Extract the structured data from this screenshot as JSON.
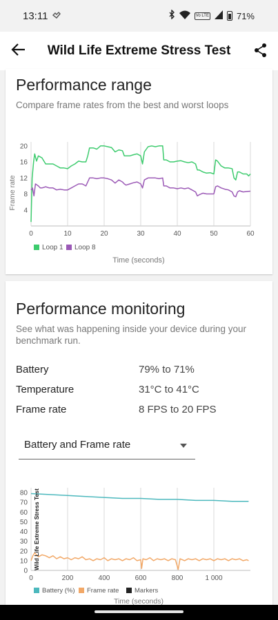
{
  "status": {
    "time": "13:11",
    "battery_pct": "71%",
    "volte_label": "Vo LTE",
    "icons": [
      "notification-icon",
      "bluetooth-icon",
      "wifi-icon",
      "volte-icon",
      "signal-icon",
      "battery-icon"
    ]
  },
  "app_bar": {
    "title": "Wild Life Extreme Stress Test",
    "back_icon": "arrow-left-icon",
    "share_icon": "share-icon"
  },
  "performance_range": {
    "heading": "Performance range",
    "description": "Compare frame rates from the best and worst loops",
    "chart_data": {
      "type": "line",
      "ylabel": "Frame rate",
      "xlabel": "Time (seconds)",
      "xlim": [
        0,
        60
      ],
      "ylim": [
        0,
        21
      ],
      "x_ticks": [
        "0",
        "10",
        "20",
        "30",
        "40",
        "50",
        "60"
      ],
      "y_ticks": [
        "4",
        "8",
        "12",
        "16",
        "20"
      ],
      "grid": "vertical",
      "legend_position": "bottom-left",
      "series": [
        {
          "name": "Loop 1",
          "color": "#3ccb6d",
          "points": [
            [
              0,
              1
            ],
            [
              0.3,
              12
            ],
            [
              0.7,
              16
            ],
            [
              1,
              18
            ],
            [
              1.5,
              16.2
            ],
            [
              2,
              17.5
            ],
            [
              3,
              17
            ],
            [
              4,
              15.5
            ],
            [
              5,
              15.5
            ],
            [
              6,
              15.5
            ],
            [
              7,
              15
            ],
            [
              8,
              14.5
            ],
            [
              9,
              14.5
            ],
            [
              10,
              14.3
            ],
            [
              11,
              15
            ],
            [
              12,
              15.5
            ],
            [
              13,
              16.2
            ],
            [
              14,
              16
            ],
            [
              15,
              16
            ],
            [
              15.5,
              17.5
            ],
            [
              16,
              19.5
            ],
            [
              17,
              19.5
            ],
            [
              18,
              19.2
            ],
            [
              19,
              20
            ],
            [
              20,
              20
            ],
            [
              21,
              19.8
            ],
            [
              22,
              19.6
            ],
            [
              23,
              18.5
            ],
            [
              24,
              19
            ],
            [
              25,
              18.8
            ],
            [
              25.5,
              17.5
            ],
            [
              26,
              17.5
            ],
            [
              27,
              17.5
            ],
            [
              28,
              17.8
            ],
            [
              29,
              18
            ],
            [
              30,
              17.5
            ],
            [
              30.5,
              15.5
            ],
            [
              31,
              18.5
            ],
            [
              32,
              19.8
            ],
            [
              33,
              20
            ],
            [
              34,
              19.8
            ],
            [
              35,
              20
            ],
            [
              36,
              20
            ],
            [
              36.3,
              16.5
            ],
            [
              37,
              16.5
            ],
            [
              38,
              16
            ],
            [
              39,
              16
            ],
            [
              40,
              16.2
            ],
            [
              41,
              16.3
            ],
            [
              42,
              16
            ],
            [
              43,
              15.8
            ],
            [
              44,
              16
            ],
            [
              45,
              15.5
            ],
            [
              45.5,
              14
            ],
            [
              46,
              14
            ],
            [
              47,
              13.5
            ],
            [
              48,
              13.2
            ],
            [
              49,
              13.3
            ],
            [
              50,
              13
            ],
            [
              50.5,
              16.5
            ],
            [
              51,
              16.2
            ],
            [
              52,
              15
            ],
            [
              53,
              14.5
            ],
            [
              54,
              14.5
            ],
            [
              55,
              14.3
            ],
            [
              55.5,
              12
            ],
            [
              56,
              11.5
            ],
            [
              56.5,
              13.5
            ],
            [
              57,
              13.5
            ],
            [
              58,
              13
            ],
            [
              59,
              13
            ],
            [
              59.5,
              12.5
            ],
            [
              60,
              13
            ]
          ]
        },
        {
          "name": "Loop 8",
          "color": "#9b59b6",
          "points": [
            [
              0,
              9
            ],
            [
              0.4,
              9.5
            ],
            [
              0.8,
              7.5
            ],
            [
              1.2,
              10.5
            ],
            [
              2,
              10
            ],
            [
              2.5,
              9.5
            ],
            [
              3,
              9.5
            ],
            [
              4,
              9.8
            ],
            [
              5,
              9.5
            ],
            [
              6,
              9.5
            ],
            [
              7,
              9
            ],
            [
              8,
              9.2
            ],
            [
              9,
              9
            ],
            [
              10,
              9
            ],
            [
              11,
              9.5
            ],
            [
              12,
              10
            ],
            [
              13,
              10.5
            ],
            [
              14,
              10.5
            ],
            [
              15,
              10
            ],
            [
              15.5,
              11
            ],
            [
              16,
              12
            ],
            [
              17,
              12
            ],
            [
              18,
              11.8
            ],
            [
              19,
              12
            ],
            [
              20,
              12
            ],
            [
              21,
              11.8
            ],
            [
              22,
              11.5
            ],
            [
              23,
              10.7
            ],
            [
              24,
              11.5
            ],
            [
              25,
              11
            ],
            [
              25.5,
              10.5
            ],
            [
              26,
              10.2
            ],
            [
              27,
              10.5
            ],
            [
              28,
              10.8
            ],
            [
              29,
              11
            ],
            [
              30,
              10.5
            ],
            [
              30.5,
              9.5
            ],
            [
              31,
              11.5
            ],
            [
              32,
              12
            ],
            [
              33,
              12
            ],
            [
              34,
              12
            ],
            [
              35,
              11.8
            ],
            [
              36,
              12
            ],
            [
              36.3,
              10
            ],
            [
              37,
              10
            ],
            [
              38,
              9.5
            ],
            [
              39,
              9.5
            ],
            [
              40,
              9.3
            ],
            [
              41,
              9.5
            ],
            [
              42,
              9.3
            ],
            [
              43,
              9.5
            ],
            [
              44,
              9
            ],
            [
              45,
              8.5
            ],
            [
              45.5,
              7.5
            ],
            [
              46,
              7.8
            ],
            [
              47,
              8.2
            ],
            [
              48,
              8
            ],
            [
              49,
              8
            ],
            [
              50,
              8
            ],
            [
              50.5,
              9.8
            ],
            [
              51,
              10
            ],
            [
              52,
              9.5
            ],
            [
              53,
              9.2
            ],
            [
              54,
              9
            ],
            [
              55,
              8.5
            ],
            [
              55.5,
              7.5
            ],
            [
              56,
              7.3
            ],
            [
              56.5,
              8.5
            ],
            [
              57,
              8.8
            ],
            [
              58,
              8.5
            ],
            [
              59,
              8.6
            ],
            [
              60,
              8.7
            ]
          ]
        }
      ]
    }
  },
  "performance_monitoring": {
    "heading": "Performance monitoring",
    "description": "See what was happening inside your device during your benchmark run.",
    "rows": [
      {
        "label": "Battery",
        "value": "79% to 71%"
      },
      {
        "label": "Temperature",
        "value": "31°C to 41°C"
      },
      {
        "label": "Frame rate",
        "value": "8 FPS to 20 FPS"
      }
    ],
    "selector": {
      "selected": "Battery and Frame rate"
    },
    "chart_data": {
      "type": "line",
      "marker_label": "Wild Life Extreme Stress Test",
      "xlabel": "Time (seconds)",
      "xlim": [
        0,
        1200
      ],
      "ylim": [
        0,
        85
      ],
      "x_ticks": [
        "0",
        "200",
        "400",
        "600",
        "800",
        "1 000"
      ],
      "y_ticks": [
        "0",
        "10",
        "20",
        "30",
        "40",
        "50",
        "60",
        "70",
        "80"
      ],
      "grid": "vertical",
      "legend_position": "bottom-left",
      "series": [
        {
          "name": "Battery (%)",
          "color": "#4bb8bd",
          "points": [
            [
              0,
              79
            ],
            [
              100,
              78
            ],
            [
              200,
              77
            ],
            [
              300,
              76
            ],
            [
              400,
              75
            ],
            [
              500,
              74
            ],
            [
              600,
              74
            ],
            [
              700,
              73
            ],
            [
              800,
              73
            ],
            [
              900,
              72
            ],
            [
              1000,
              72
            ],
            [
              1100,
              71
            ],
            [
              1190,
              71
            ]
          ]
        },
        {
          "name": "Frame rate",
          "color": "#f2a867",
          "points": [
            [
              0,
              10
            ],
            [
              10,
              15
            ],
            [
              20,
              18
            ],
            [
              40,
              14
            ],
            [
              60,
              16
            ],
            [
              80,
              15
            ],
            [
              100,
              13
            ],
            [
              120,
              15
            ],
            [
              140,
              12
            ],
            [
              160,
              14
            ],
            [
              180,
              12
            ],
            [
              200,
              13
            ],
            [
              220,
              11
            ],
            [
              240,
              13
            ],
            [
              260,
              12
            ],
            [
              280,
              14
            ],
            [
              300,
              11
            ],
            [
              320,
              12
            ],
            [
              340,
              10
            ],
            [
              360,
              12
            ],
            [
              380,
              11
            ],
            [
              400,
              13
            ],
            [
              420,
              10
            ],
            [
              440,
              12
            ],
            [
              460,
              11
            ],
            [
              480,
              12
            ],
            [
              500,
              10
            ],
            [
              520,
              12
            ],
            [
              540,
              11
            ],
            [
              560,
              13
            ],
            [
              580,
              10
            ],
            [
              600,
              11
            ],
            [
              605,
              2
            ],
            [
              612,
              12
            ],
            [
              630,
              11
            ],
            [
              650,
              13
            ],
            [
              670,
              10
            ],
            [
              690,
              12
            ],
            [
              710,
              11
            ],
            [
              730,
              12
            ],
            [
              750,
              10
            ],
            [
              770,
              12
            ],
            [
              790,
              11
            ],
            [
              805,
              1
            ],
            [
              815,
              12
            ],
            [
              840,
              10
            ],
            [
              860,
              12
            ],
            [
              880,
              11
            ],
            [
              900,
              12
            ],
            [
              920,
              10
            ],
            [
              940,
              12
            ],
            [
              960,
              11
            ],
            [
              980,
              12
            ],
            [
              1000,
              10
            ],
            [
              1020,
              12
            ],
            [
              1040,
              11
            ],
            [
              1060,
              12
            ],
            [
              1080,
              10
            ],
            [
              1100,
              12
            ],
            [
              1120,
              11
            ],
            [
              1140,
              12
            ],
            [
              1160,
              10
            ],
            [
              1180,
              11
            ],
            [
              1190,
              10
            ]
          ]
        },
        {
          "name": "Markers",
          "color": "#222222",
          "points": []
        }
      ]
    }
  },
  "nav_bar": {
    "handle": "gesture-handle"
  }
}
